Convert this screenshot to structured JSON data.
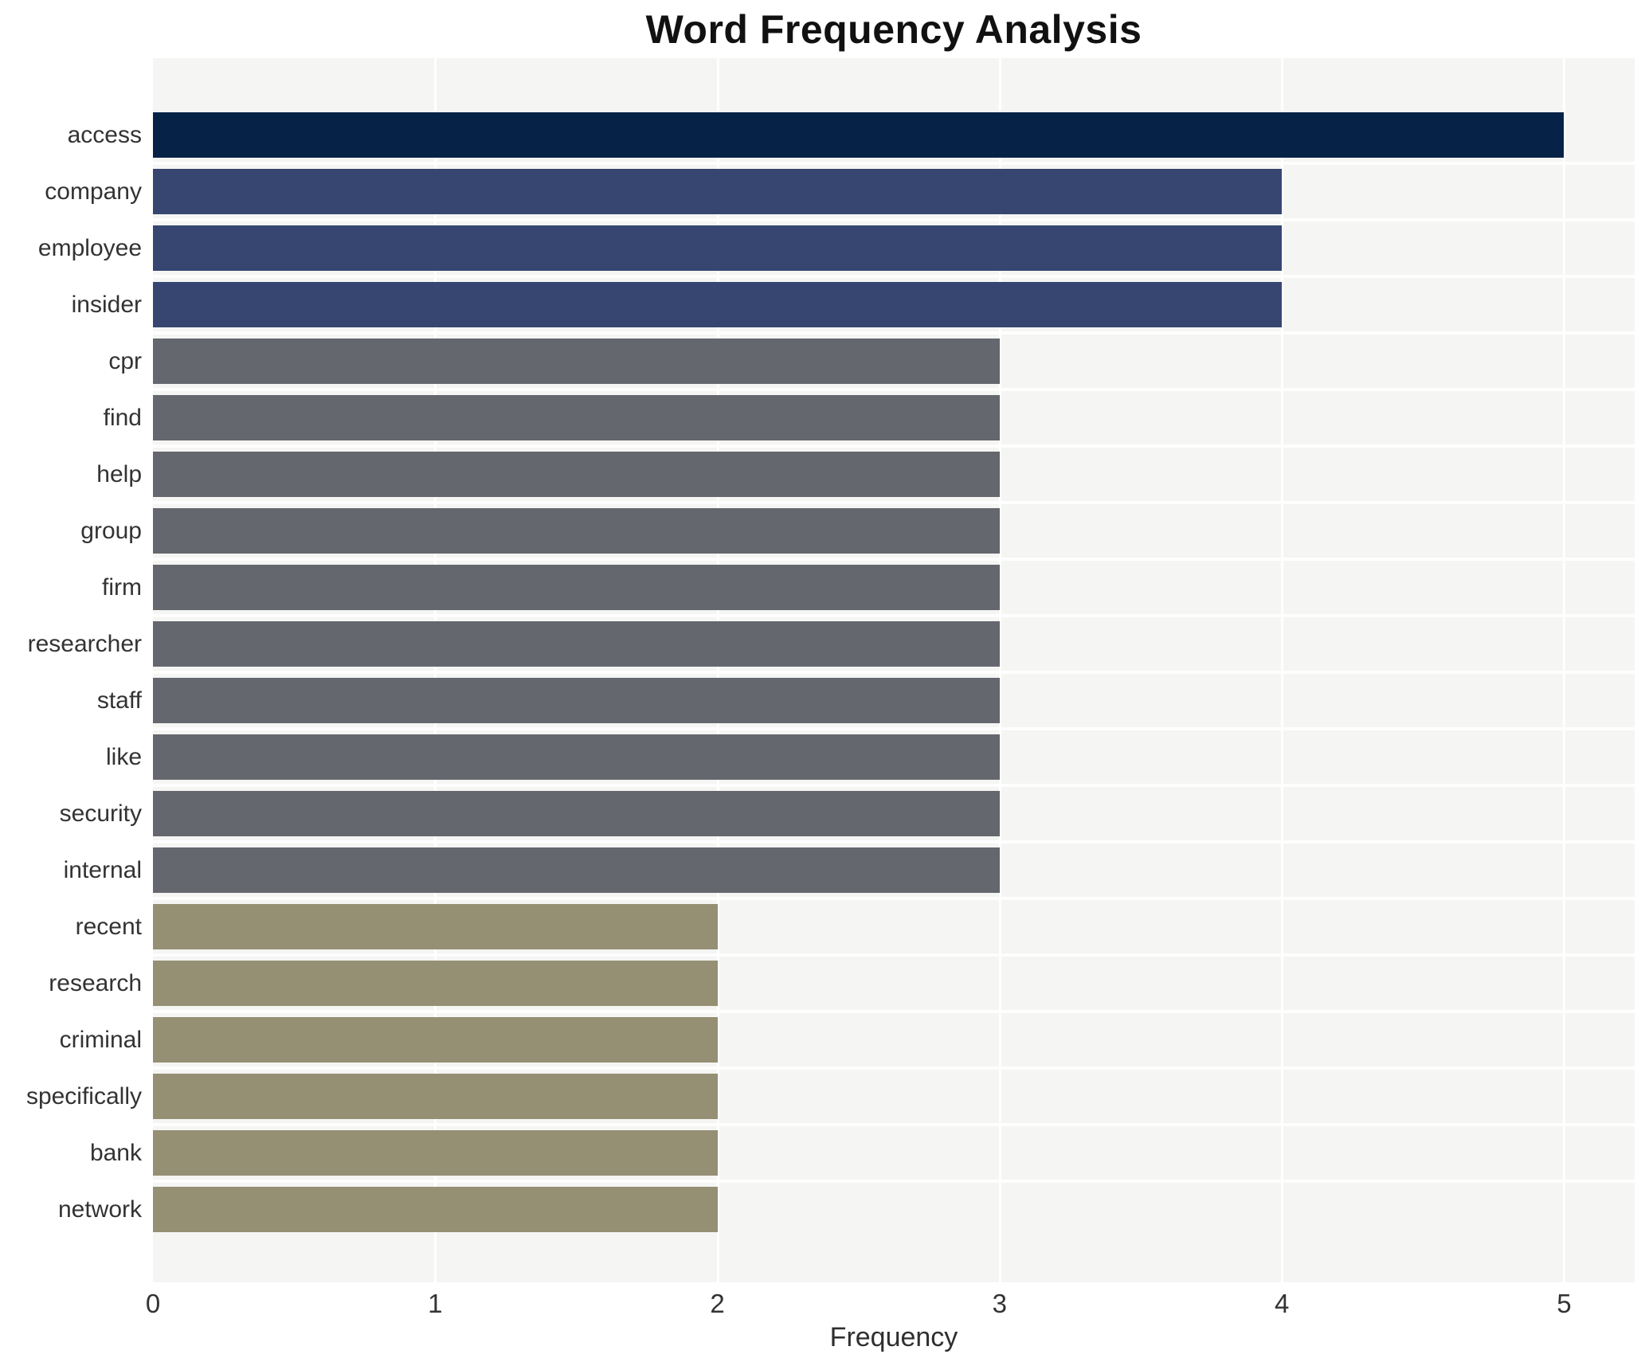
{
  "title": "Word Frequency Analysis",
  "x_axis": {
    "label": "Frequency"
  },
  "chart_data": {
    "type": "bar",
    "orientation": "horizontal",
    "title": "Word Frequency Analysis",
    "xlabel": "Frequency",
    "ylabel": "",
    "categories": [
      "access",
      "company",
      "employee",
      "insider",
      "cpr",
      "find",
      "help",
      "group",
      "firm",
      "researcher",
      "staff",
      "like",
      "security",
      "internal",
      "recent",
      "research",
      "criminal",
      "specifically",
      "bank",
      "network"
    ],
    "values": [
      5,
      4,
      4,
      4,
      3,
      3,
      3,
      3,
      3,
      3,
      3,
      3,
      3,
      3,
      2,
      2,
      2,
      2,
      2,
      2
    ],
    "xticks": [
      0,
      1,
      2,
      3,
      4,
      5
    ],
    "xlim": [
      0,
      5.25
    ],
    "grid": true,
    "legend": false,
    "colors_by_value": {
      "5": "#062247",
      "4": "#374671",
      "3": "#65676f",
      "2": "#958f74"
    },
    "plot_background": "#f5f5f3",
    "gridline_color": "#ffffff"
  }
}
